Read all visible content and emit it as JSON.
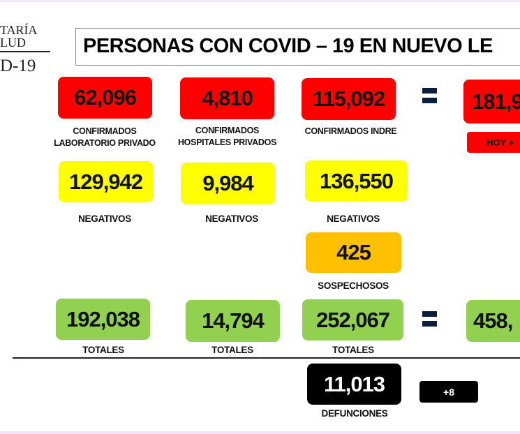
{
  "logo": {
    "line1": "TARÍA",
    "line2": "LUD",
    "line3": "D-19"
  },
  "title": "PERSONAS CON COVID – 19 EN NUEVO LE",
  "confirmed": [
    {
      "value": "62,096",
      "label1": "CONFIRMADOS",
      "label2": "LABORATORIO PRIVADO"
    },
    {
      "value": "4,810",
      "label1": "CONFIRMADOS",
      "label2": "HOSPITALES PRIVADOS"
    },
    {
      "value": "115,092",
      "label1": "CONFIRMADOS INDRE",
      "label2": ""
    }
  ],
  "confirmed_total": {
    "value": "181,9",
    "today": "HOY +"
  },
  "negatives": [
    {
      "value": "129,942",
      "label": "NEGATIVOS"
    },
    {
      "value": "9,984",
      "label": "NEGATIVOS"
    },
    {
      "value": "136,550",
      "label": "NEGATIVOS"
    }
  ],
  "suspects": {
    "value": "425",
    "label": "SOSPECHOSOS"
  },
  "totals": [
    {
      "value": "192,038",
      "label": "TOTALES"
    },
    {
      "value": "14,794",
      "label": "TOTALES"
    },
    {
      "value": "252,067",
      "label": "TOTALES"
    }
  ],
  "grand_total": {
    "value": "458,"
  },
  "deaths": {
    "value": "11,013",
    "label": "DEFUNCIONES",
    "today": "+8"
  },
  "colors": {
    "confirmed": "#fe0000",
    "negatives": "#ffff00",
    "suspects": "#ffc000",
    "totals": "#92d050",
    "deaths": "#000000"
  }
}
